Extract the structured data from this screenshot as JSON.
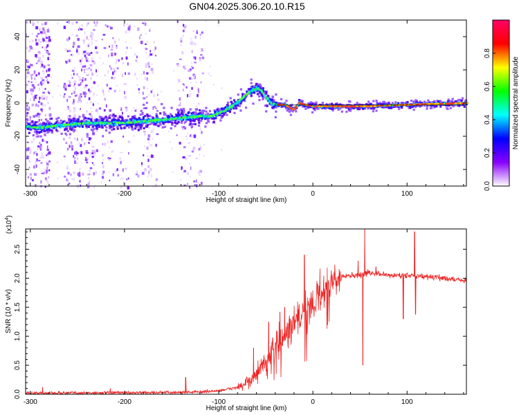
{
  "title": "GN04.2025.306.20.10.R15",
  "chart_data": [
    {
      "type": "heatmap",
      "name": "spectrogram",
      "xlabel": "Height of straight line (km)",
      "ylabel": "Frequency (Hz)",
      "xlim": [
        -305,
        163
      ],
      "ylim": [
        -50,
        50
      ],
      "x_ticks": [
        -300,
        -200,
        -100,
        0,
        100
      ],
      "y_ticks": [
        -40,
        -20,
        0,
        20,
        40
      ],
      "colorbar": {
        "label": "Normalized spectral amplitude",
        "range": [
          0,
          1
        ],
        "ticks": [
          "0.0",
          "0.2",
          "0.4",
          "0.6",
          "0.8"
        ],
        "colors": [
          "#ffffff",
          "#8800ff",
          "#0000ff",
          "#00ffff",
          "#00ff00",
          "#ffff00",
          "#ff0000",
          "#ff0066"
        ]
      },
      "ridge": {
        "x": [
          -305,
          -290,
          -280,
          -260,
          -240,
          -220,
          -200,
          -180,
          -160,
          -140,
          -120,
          -110,
          -100,
          -90,
          -80,
          -70,
          -60,
          -55,
          -50,
          -45,
          -40,
          -35,
          -30,
          -25,
          -22,
          -18,
          -15,
          -10,
          0,
          20,
          50,
          100,
          163
        ],
        "y": [
          -14,
          -15,
          -14,
          -13,
          -12,
          -12,
          -12,
          -11,
          -10,
          -9,
          -8,
          -8,
          -6,
          -3,
          1,
          6,
          9,
          7,
          3,
          0,
          -1,
          -1,
          -1,
          -3,
          -4,
          -2,
          0,
          -1,
          -2,
          -2,
          -2,
          -1,
          0
        ]
      }
    },
    {
      "type": "line",
      "name": "snr",
      "xlabel": "Height of straight line (km)",
      "ylabel": "SNR (10 * v/v)",
      "y_scale_label": "(x10",
      "y_scale_exp": "4",
      "xlim": [
        -305,
        163
      ],
      "ylim": [
        0,
        2.85
      ],
      "x_ticks": [
        -300,
        -200,
        -100,
        0,
        100
      ],
      "y_ticks": [
        "0.0",
        "0.5",
        "1.0",
        "1.5",
        "2.0",
        "2.5"
      ],
      "color": "#ee2222",
      "envelope": {
        "x": [
          -305,
          -150,
          -120,
          -100,
          -80,
          -70,
          -60,
          -50,
          -40,
          -30,
          -20,
          -10,
          0,
          10,
          20,
          30,
          40,
          50,
          60,
          70,
          80,
          100,
          120,
          140,
          163
        ],
        "y": [
          0.02,
          0.03,
          0.04,
          0.06,
          0.12,
          0.2,
          0.35,
          0.55,
          0.8,
          1.0,
          1.2,
          1.4,
          1.6,
          1.8,
          1.92,
          2.02,
          2.05,
          2.05,
          2.1,
          2.07,
          2.05,
          2.05,
          2.03,
          2.0,
          1.96
        ]
      },
      "spikes": [
        {
          "x": -287,
          "y": 0.12
        },
        {
          "x": -215,
          "y": 0.1
        },
        {
          "x": -135,
          "y": 0.29
        },
        {
          "x": -63,
          "y": 0.8
        },
        {
          "x": -47,
          "y": 1.25
        },
        {
          "x": -35,
          "y": 1.42
        },
        {
          "x": -30,
          "y": 1.5
        },
        {
          "x": -9,
          "y": 2.4
        },
        {
          "x": 48,
          "y": 2.3
        },
        {
          "x": 53,
          "y": 0.5
        },
        {
          "x": 55,
          "y": 2.85
        },
        {
          "x": 67,
          "y": 2.2
        },
        {
          "x": 95,
          "y": 2.08
        },
        {
          "x": 96,
          "y": 1.3
        },
        {
          "x": 108,
          "y": 2.8
        },
        {
          "x": 109,
          "y": 1.38
        }
      ]
    }
  ]
}
